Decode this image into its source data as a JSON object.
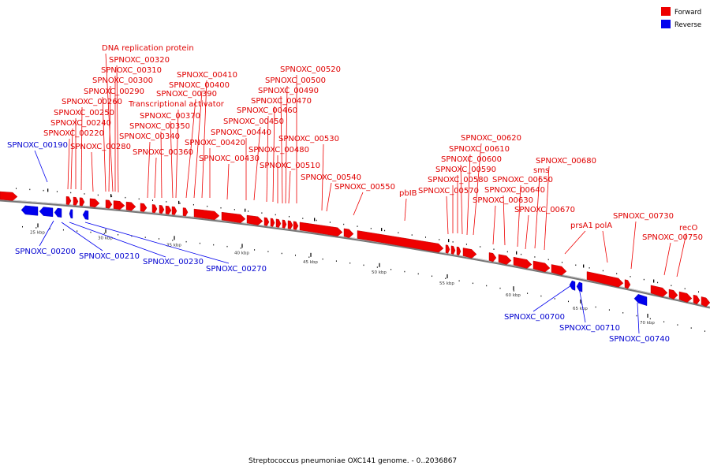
{
  "caption": "Streptococcus pneumoniae OXC141 genome. - 0..2036867",
  "legend": [
    {
      "label": "Forward",
      "color": "#ee0000"
    },
    {
      "label": "Reverse",
      "color": "#0000ee"
    }
  ],
  "colors": {
    "forward": "#ee0000",
    "reverse": "#0000ee",
    "backbone": "#777777"
  },
  "scale_ticks": [
    "25 kbp",
    "30 kbp",
    "35 kbp",
    "40 kbp",
    "45 kbp",
    "50 kbp",
    "55 kbp",
    "60 kbp",
    "65 kbp",
    "70 kbp"
  ],
  "forward_labels": [
    "DNA replication protein",
    "SPNOXC_00320",
    "SPNOXC_00310",
    "SPNOXC_00300",
    "SPNOXC_00290",
    "SPNOXC_00260",
    "SPNOXC_00250",
    "SPNOXC_00240",
    "SPNOXC_00220",
    "SPNOXC_00280",
    "Transcriptional activator",
    "SPNOXC_00370",
    "SPNOXC_00350",
    "SPNOXC_00340",
    "SPNOXC_00360",
    "SPNOXC_00410",
    "SPNOXC_00400",
    "SPNOXC_00390",
    "SPNOXC_00420",
    "SPNOXC_00430",
    "SPNOXC_00440",
    "SPNOXC_00450",
    "SPNOXC_00460",
    "SPNOXC_00470",
    "SPNOXC_00480",
    "SPNOXC_00490",
    "SPNOXC_00500",
    "SPNOXC_00510",
    "SPNOXC_00520",
    "SPNOXC_00530",
    "SPNOXC_00540",
    "SPNOXC_00550",
    "pbIB",
    "SPNOXC_00570",
    "SPNOXC_00580",
    "SPNOXC_00590",
    "SPNOXC_00600",
    "SPNOXC_00610",
    "SPNOXC_00620",
    "SPNOXC_00630",
    "SPNOXC_00640",
    "SPNOXC_00650",
    "sms",
    "SPNOXC_00670",
    "SPNOXC_00680",
    "prsA1",
    "polA",
    "SPNOXC_00730",
    "recO",
    "SPNOXC_00750"
  ],
  "reverse_labels": [
    "SPNOXC_00190",
    "SPNOXC_00200",
    "SPNOXC_00210",
    "SPNOXC_00230",
    "SPNOXC_00270",
    "SPNOXC_00700",
    "SPNOXC_00710",
    "SPNOXC_00740"
  ]
}
